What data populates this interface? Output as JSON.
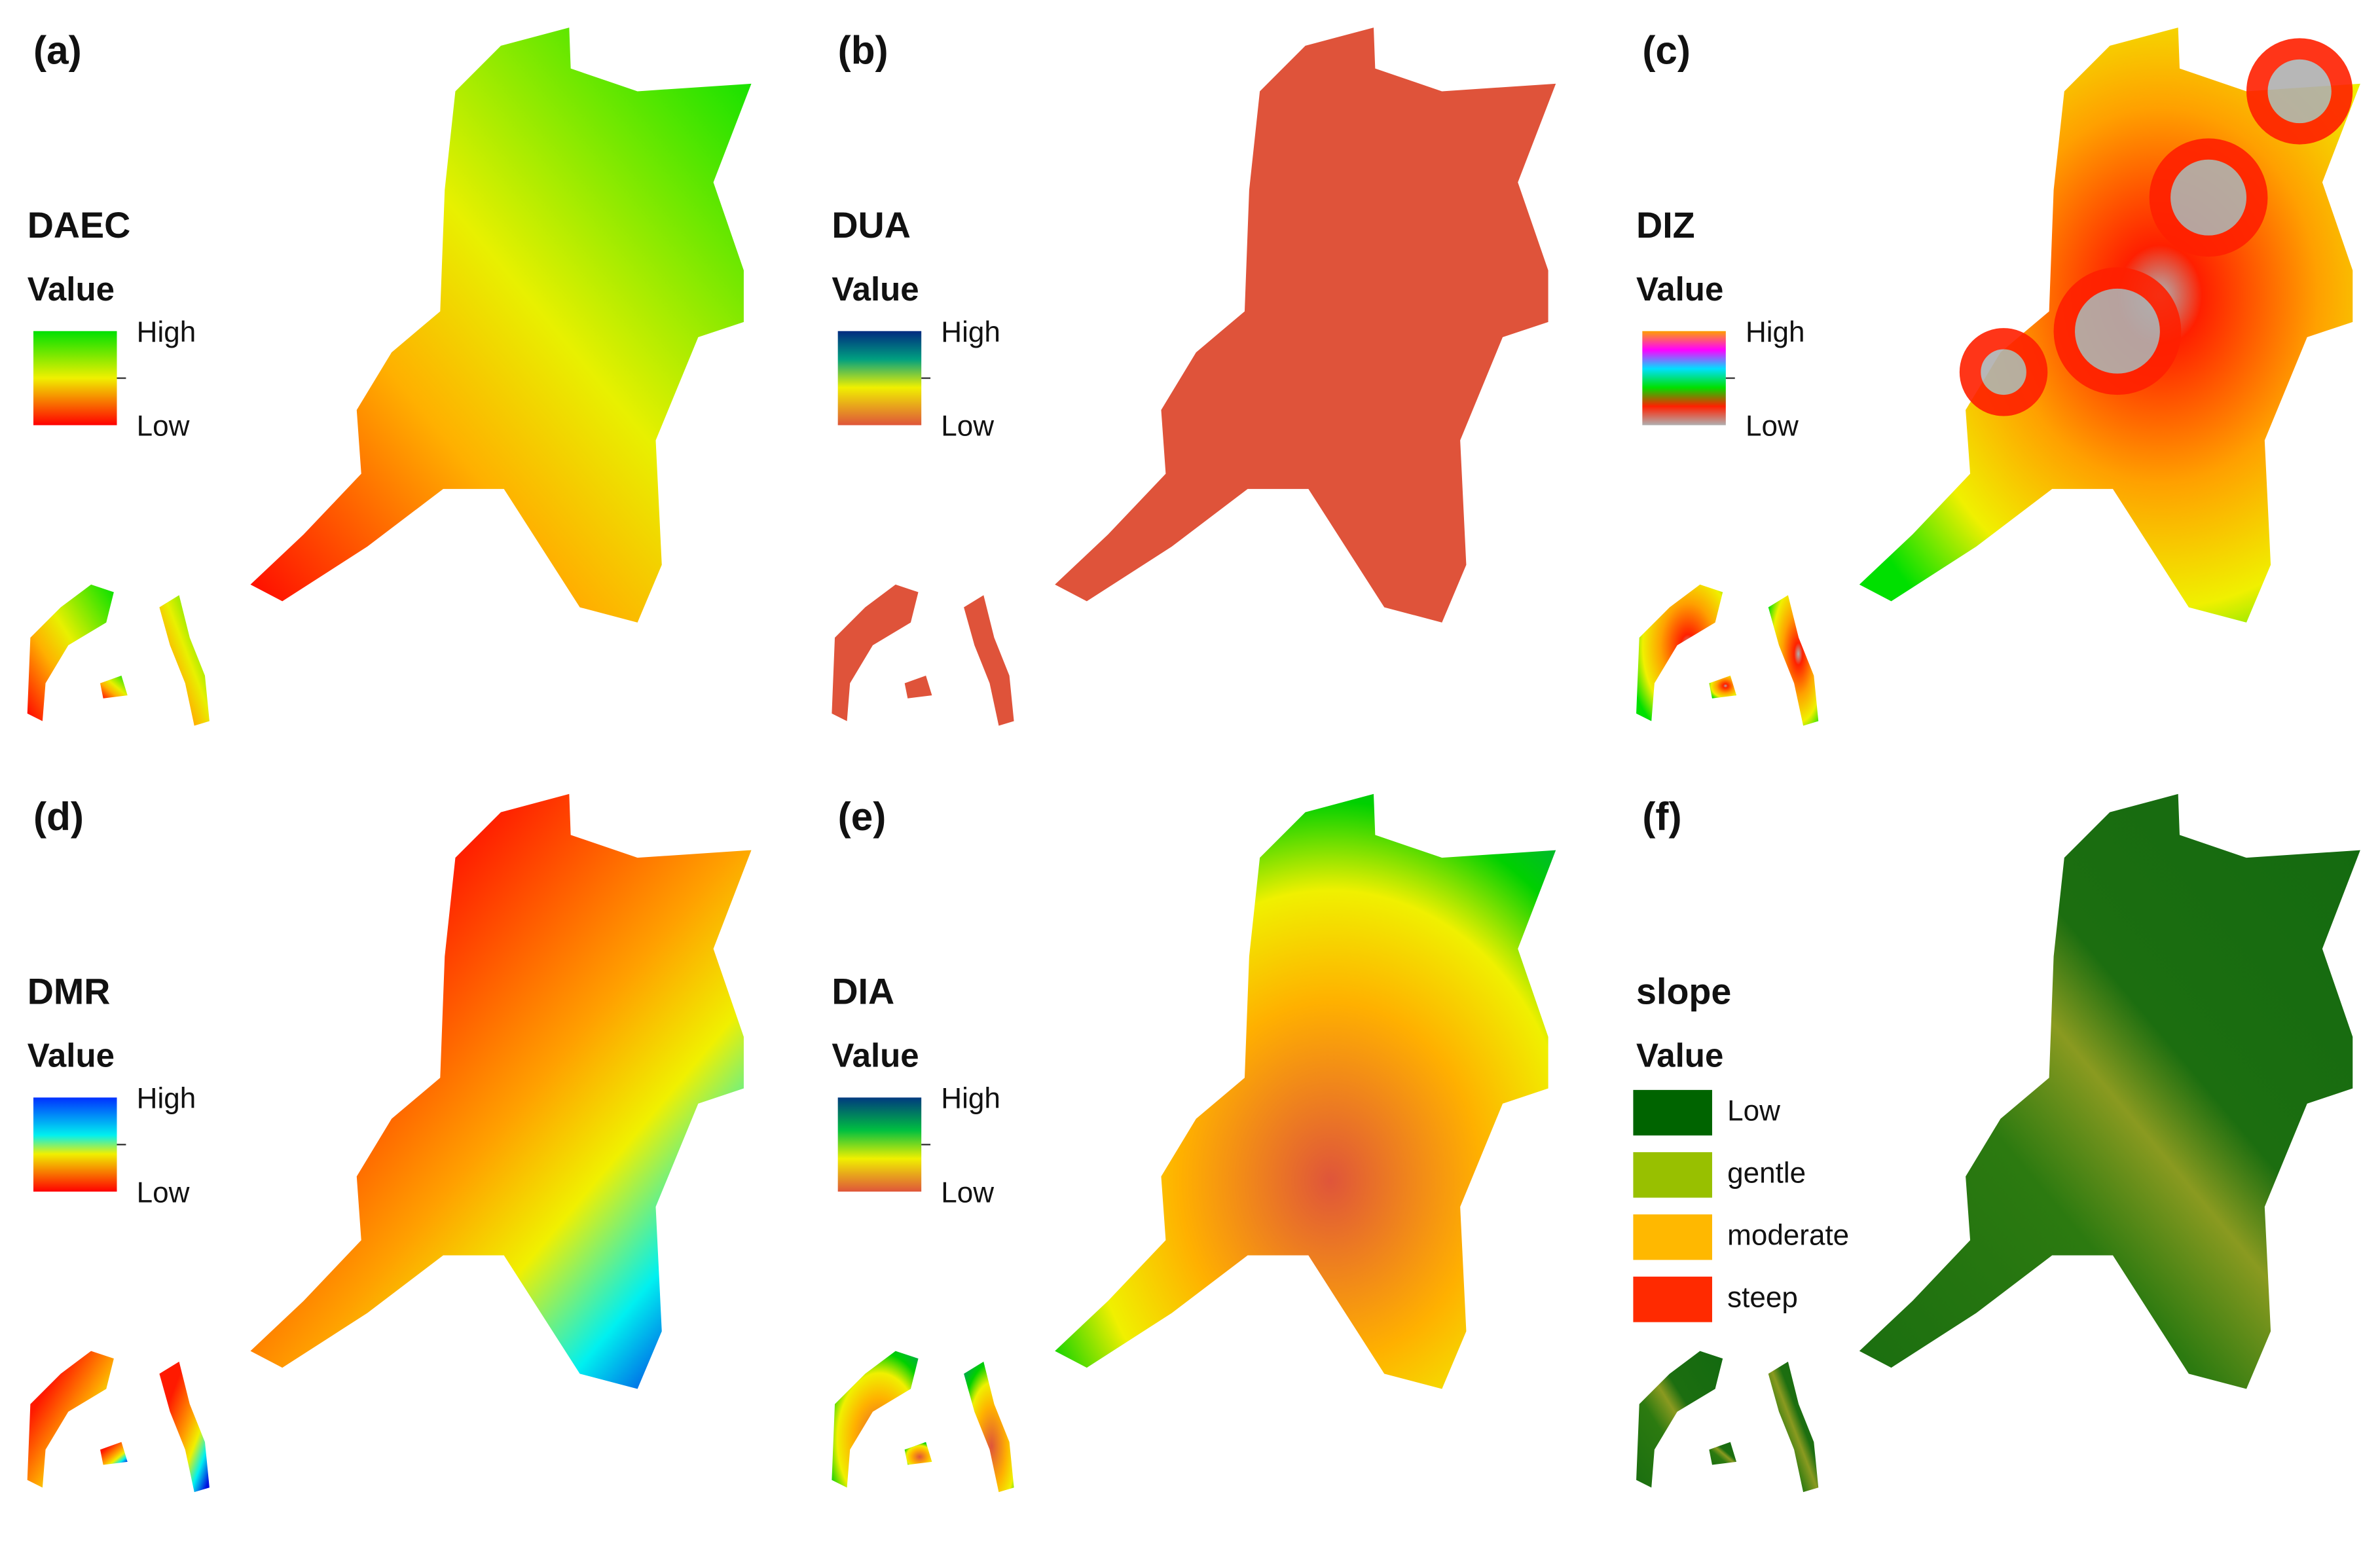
{
  "panels": [
    {
      "label": "(a)",
      "title": "DAEC",
      "legend_title": "Value",
      "high": "High",
      "low": "Low"
    },
    {
      "label": "(b)",
      "title": "DUA",
      "legend_title": "Value",
      "high": "High",
      "low": "Low"
    },
    {
      "label": "(c)",
      "title": "DIZ",
      "legend_title": "Value",
      "high": "High",
      "low": "Low"
    },
    {
      "label": "(d)",
      "title": "DMR",
      "legend_title": "Value",
      "high": "High",
      "low": "Low"
    },
    {
      "label": "(e)",
      "title": "DIA",
      "legend_title": "Value",
      "high": "High",
      "low": "Low"
    },
    {
      "label": "(f)",
      "title": "slope",
      "legend_title": "Value",
      "classes": [
        {
          "label": "Low",
          "color": "#006400"
        },
        {
          "label": "gentle",
          "color": "#98c000"
        },
        {
          "label": "moderate",
          "color": "#ffb800"
        },
        {
          "label": "steep",
          "color": "#ff2a00"
        }
      ]
    }
  ]
}
